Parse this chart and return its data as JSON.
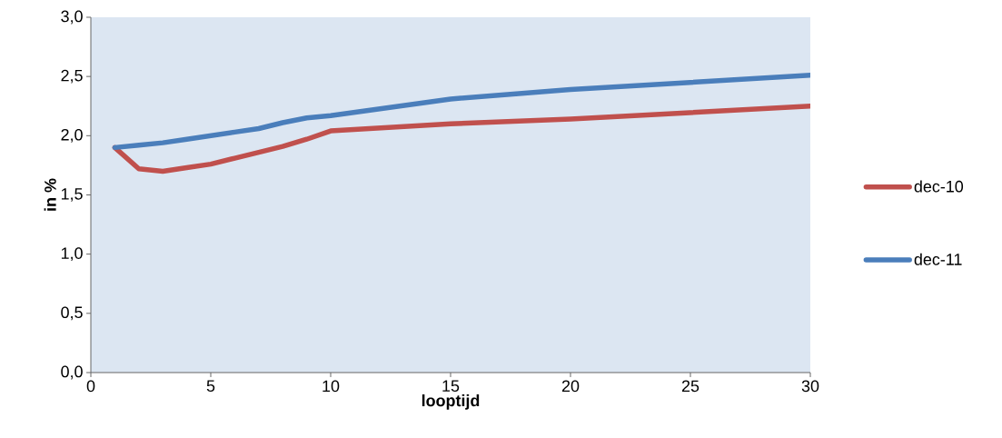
{
  "chart_data": {
    "type": "line",
    "xlabel": "looptijd",
    "ylabel": "in %",
    "legend": "right",
    "grid": false,
    "marker": "none",
    "line_style": "solid",
    "xlim": [
      0,
      30
    ],
    "xticks": [
      0,
      5,
      10,
      15,
      20,
      25,
      30
    ],
    "ylim": [
      0,
      3
    ],
    "yticks": [
      {
        "value": 0,
        "label": "0,0"
      },
      {
        "value": 0.5,
        "label": "0,5"
      },
      {
        "value": 1,
        "label": "1,0"
      },
      {
        "value": 1.5,
        "label": "1,5"
      },
      {
        "value": 2,
        "label": "2,0"
      },
      {
        "value": 2.5,
        "label": "2,5"
      },
      {
        "value": 3,
        "label": "3,0"
      }
    ],
    "x": [
      1,
      2,
      3,
      4,
      5,
      6,
      7,
      8,
      9,
      10,
      15,
      20,
      30
    ],
    "series": [
      {
        "name": "dec-10",
        "color": "#c0504d",
        "values": [
          1.9,
          1.72,
          1.7,
          1.73,
          1.76,
          1.81,
          1.86,
          1.91,
          1.97,
          2.04,
          2.1,
          2.14,
          2.25
        ]
      },
      {
        "name": "dec-11",
        "color": "#4a7ebb",
        "values": [
          1.9,
          1.92,
          1.94,
          1.97,
          2.0,
          2.03,
          2.06,
          2.11,
          2.15,
          2.17,
          2.31,
          2.39,
          2.51
        ]
      }
    ]
  }
}
